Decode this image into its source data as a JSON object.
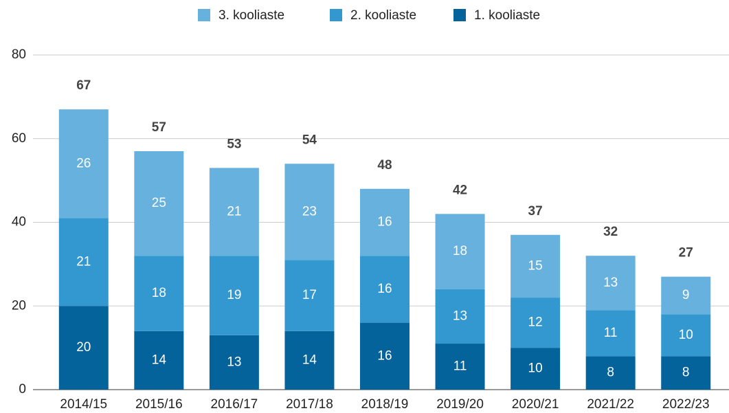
{
  "chart_data": {
    "type": "stacked_bar",
    "categories": [
      "2014/15",
      "2015/16",
      "2016/17",
      "2017/18",
      "2018/19",
      "2019/20",
      "2020/21",
      "2021/22",
      "2022/23"
    ],
    "series": [
      {
        "name": "1. kooliaste",
        "color": "#05639b",
        "values": [
          20,
          14,
          13,
          14,
          16,
          11,
          10,
          8,
          8
        ]
      },
      {
        "name": "2. kooliaste",
        "color": "#3498d0",
        "values": [
          21,
          18,
          19,
          17,
          16,
          13,
          12,
          11,
          10
        ]
      },
      {
        "name": "3. kooliaste",
        "color": "#67b1de",
        "values": [
          26,
          25,
          21,
          23,
          16,
          18,
          15,
          13,
          9
        ]
      }
    ],
    "totals": [
      67,
      57,
      53,
      54,
      48,
      42,
      37,
      32,
      27
    ],
    "ylim": [
      0,
      80
    ],
    "yticks": [
      0,
      20,
      40,
      60,
      80
    ],
    "grid": true,
    "legend": "top"
  }
}
